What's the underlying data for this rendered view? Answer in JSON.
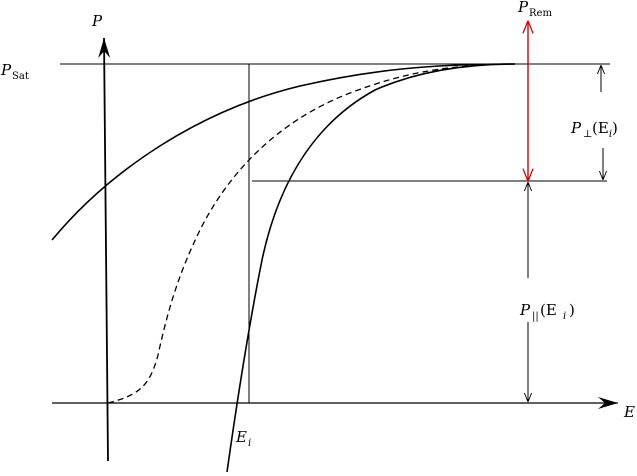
{
  "labels": {
    "p_axis": "P",
    "e_axis": "E",
    "p_sat_main": "P",
    "p_sat_sub": "Sat",
    "p_rem_main": "P",
    "p_rem_sub": "Rem",
    "e_i_main": "E",
    "e_i_sub": "i",
    "p_perp_main": "P",
    "p_perp_sub": "⊥",
    "p_perp_arg": "(E",
    "p_perp_arg_sub": "i",
    "p_perp_close": ")",
    "p_par_main": "P",
    "p_par_sub": "||",
    "p_par_arg": "(E",
    "p_par_arg_sub": "i",
    "p_par_close": ")"
  },
  "colors": {
    "ink": "#000000",
    "remanent_arrow": "#d40000"
  }
}
